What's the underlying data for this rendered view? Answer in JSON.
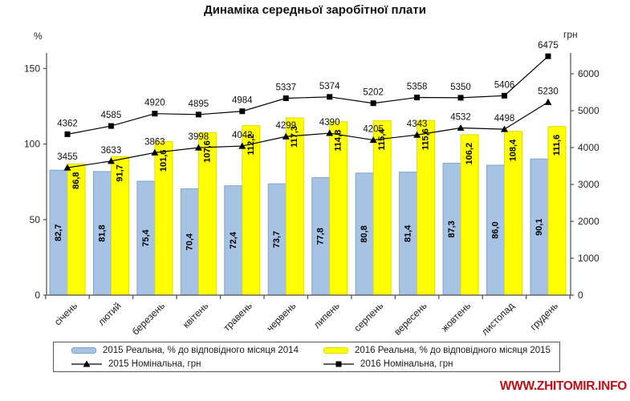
{
  "title": "Динаміка середньої заробітної плати",
  "watermark": {
    "text": "WWW.ZHITOMIR.INFO",
    "color": "#bc1016"
  },
  "chart_data": {
    "type": "combo-bar-line",
    "title": "Динаміка середньої заробітної плати",
    "grid": false,
    "legend_position": "bottom",
    "categories": [
      "січень",
      "лютий",
      "березень",
      "квітень",
      "травень",
      "червень",
      "липень",
      "серпень",
      "вересень",
      "жовтень",
      "листопад",
      "грудень"
    ],
    "left_axis": {
      "label": "%",
      "ticks": [
        0,
        50,
        100,
        150
      ],
      "max": 160
    },
    "right_axis": {
      "label": "грн",
      "ticks": [
        0,
        1000,
        2000,
        3000,
        4000,
        5000,
        6000
      ],
      "max": 6560
    },
    "series": [
      {
        "name": "2015 Реальна, % до відповідного місяця 2014",
        "type": "bar",
        "axis": "percent",
        "color": "#a6c3e3",
        "border_color": "#7fa5cf",
        "values": [
          82.7,
          81.8,
          75.4,
          70.4,
          72.4,
          73.7,
          77.8,
          80.8,
          81.4,
          87.3,
          86.0,
          90.1
        ],
        "labels": [
          "82,7",
          "81,8",
          "75,4",
          "70,4",
          "72,4",
          "73,7",
          "77,8",
          "80,8",
          "81,4",
          "87,3",
          "86,0",
          "90,1"
        ]
      },
      {
        "name": "2016 Реальна, % до відповідного місяця 2015",
        "type": "bar",
        "axis": "percent",
        "color": "#ffff00",
        "border_color": "#e3da00",
        "values": [
          86.8,
          91.7,
          101.6,
          107.6,
          112.2,
          117.3,
          114.8,
          115.4,
          115.6,
          106.2,
          108.4,
          111.6
        ],
        "labels": [
          "86,8",
          "91,7",
          "101,6",
          "107,6",
          "112,2",
          "117,3",
          "114,8",
          "115,4",
          "115,6",
          "106,2",
          "108,4",
          "111,6"
        ]
      },
      {
        "name": "2015 Номінальна, грн",
        "type": "line",
        "marker": "triangle",
        "axis": "hryvnia",
        "color": "#000000",
        "values": [
          3455,
          3633,
          3863,
          3998,
          4042,
          4299,
          4390,
          4205,
          4343,
          4532,
          4498,
          5230
        ]
      },
      {
        "name": "2016 Номінальна, грн",
        "type": "line",
        "marker": "square",
        "axis": "hryvnia",
        "color": "#000000",
        "values": [
          4362,
          4585,
          4920,
          4895,
          4984,
          5337,
          5374,
          5202,
          5358,
          5350,
          5406,
          6475
        ]
      }
    ]
  }
}
